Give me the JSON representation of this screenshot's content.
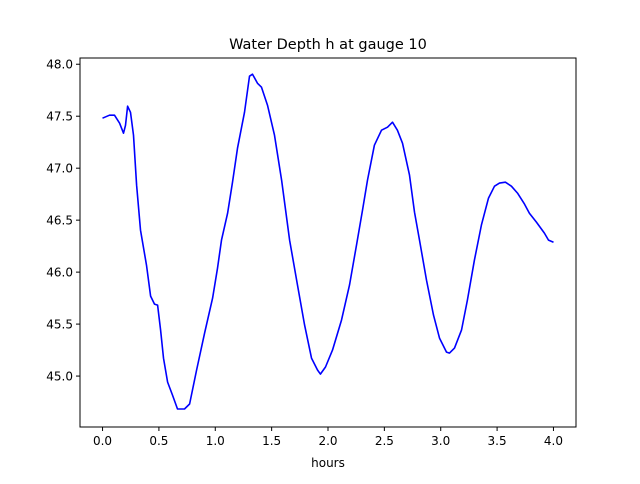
{
  "chart_data": {
    "type": "line",
    "title": "Water Depth h at gauge 10",
    "xlabel": "hours",
    "ylabel": "",
    "xlim": [
      -0.2,
      4.2
    ],
    "ylim": [
      44.51,
      48.06
    ],
    "grid": false,
    "xticks": [
      0.0,
      0.5,
      1.0,
      1.5,
      2.0,
      2.5,
      3.0,
      3.5,
      4.0
    ],
    "xtick_labels": [
      "0.0",
      "0.5",
      "1.0",
      "1.5",
      "2.0",
      "2.5",
      "3.0",
      "3.5",
      "4.0"
    ],
    "yticks": [
      45.0,
      45.5,
      46.0,
      46.5,
      47.0,
      47.5,
      48.0
    ],
    "ytick_labels": [
      "45.0",
      "45.5",
      "46.0",
      "46.5",
      "47.0",
      "47.5",
      "48.0"
    ],
    "series": [
      {
        "name": "h",
        "color": "#0000ff",
        "x": [
          0.0,
          0.062,
          0.106,
          0.151,
          0.186,
          0.204,
          0.222,
          0.248,
          0.275,
          0.302,
          0.337,
          0.39,
          0.426,
          0.461,
          0.488,
          0.515,
          0.541,
          0.577,
          0.621,
          0.665,
          0.727,
          0.772,
          0.834,
          0.905,
          0.976,
          1.02,
          1.055,
          1.109,
          1.153,
          1.197,
          1.259,
          1.304,
          1.33,
          1.375,
          1.41,
          1.463,
          1.525,
          1.588,
          1.659,
          1.729,
          1.792,
          1.854,
          1.907,
          1.933,
          1.978,
          2.04,
          2.12,
          2.191,
          2.253,
          2.306,
          2.35,
          2.412,
          2.475,
          2.528,
          2.572,
          2.616,
          2.661,
          2.723,
          2.767,
          2.812,
          2.874,
          2.936,
          2.989,
          3.051,
          3.078,
          3.122,
          3.184,
          3.237,
          3.299,
          3.361,
          3.424,
          3.477,
          3.521,
          3.574,
          3.627,
          3.681,
          3.743,
          3.787,
          3.849,
          3.92,
          3.956,
          4.0
        ],
        "y": [
          47.481,
          47.51,
          47.51,
          47.433,
          47.337,
          47.413,
          47.596,
          47.538,
          47.317,
          46.837,
          46.404,
          46.067,
          45.769,
          45.692,
          45.683,
          45.442,
          45.173,
          44.942,
          44.817,
          44.683,
          44.683,
          44.731,
          45.058,
          45.413,
          45.75,
          46.038,
          46.308,
          46.567,
          46.865,
          47.192,
          47.538,
          47.885,
          47.904,
          47.817,
          47.779,
          47.606,
          47.317,
          46.885,
          46.308,
          45.875,
          45.49,
          45.173,
          45.058,
          45.019,
          45.087,
          45.25,
          45.538,
          45.875,
          46.26,
          46.596,
          46.885,
          47.221,
          47.365,
          47.394,
          47.442,
          47.365,
          47.24,
          46.933,
          46.577,
          46.308,
          45.923,
          45.587,
          45.365,
          45.231,
          45.221,
          45.269,
          45.442,
          45.731,
          46.115,
          46.452,
          46.712,
          46.827,
          46.856,
          46.865,
          46.827,
          46.76,
          46.654,
          46.567,
          46.481,
          46.375,
          46.308,
          46.288
        ]
      }
    ]
  }
}
